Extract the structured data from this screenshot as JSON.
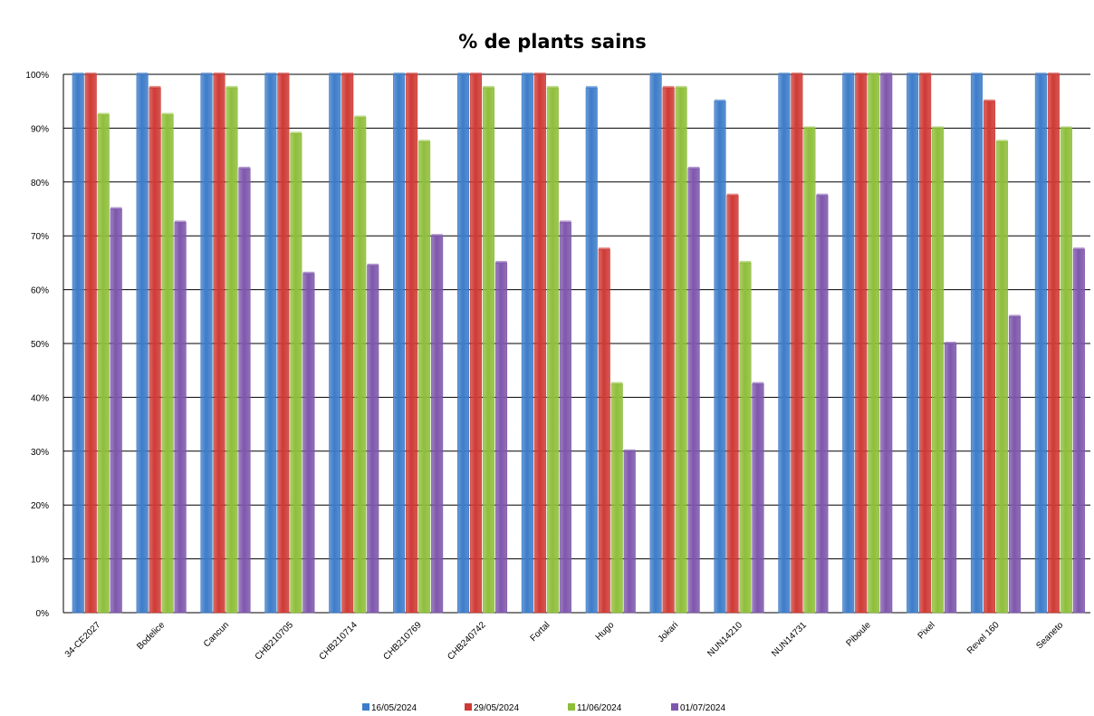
{
  "chart_data": {
    "type": "bar",
    "title": "% de plants sains",
    "xlabel": "",
    "ylabel": "",
    "ylim": [
      0,
      100
    ],
    "y_ticks": [
      "0%",
      "10%",
      "20%",
      "30%",
      "40%",
      "50%",
      "60%",
      "70%",
      "80%",
      "90%",
      "100%"
    ],
    "grid": true,
    "legend_position": "bottom",
    "categories": [
      "34-CE2027",
      "Bodelice",
      "Cancun",
      "CHB210705",
      "CHB210714",
      "CHB210769",
      "CHB240742",
      "Fortal",
      "Hugo",
      "Jokari",
      "NUN14210",
      "NUN14731",
      "Piboule",
      "Pixel",
      "Revel 160",
      "Seaneto"
    ],
    "series": [
      {
        "name": "16/05/2024",
        "color": "#3d7cc9",
        "values": [
          100,
          100,
          100,
          100,
          100,
          100,
          100,
          100,
          97.5,
          100,
          95,
          100,
          100,
          100,
          100,
          100
        ]
      },
      {
        "name": "29/05/2024",
        "color": "#cf3a35",
        "values": [
          100,
          97.5,
          100,
          100,
          100,
          100,
          100,
          100,
          67.5,
          97.5,
          77.5,
          100,
          100,
          100,
          95,
          100
        ]
      },
      {
        "name": "11/06/2024",
        "color": "#8fbe3a",
        "values": [
          92.5,
          92.5,
          97.5,
          89,
          92,
          87.5,
          97.5,
          97.5,
          42.5,
          97.5,
          65,
          90,
          100,
          90,
          87.5,
          90
        ]
      },
      {
        "name": "01/07/2024",
        "color": "#7e57ac",
        "values": [
          75,
          72.5,
          82.5,
          63,
          64.5,
          70,
          65,
          72.5,
          30,
          82.5,
          42.5,
          77.5,
          100,
          50,
          55,
          67.5
        ]
      }
    ]
  }
}
